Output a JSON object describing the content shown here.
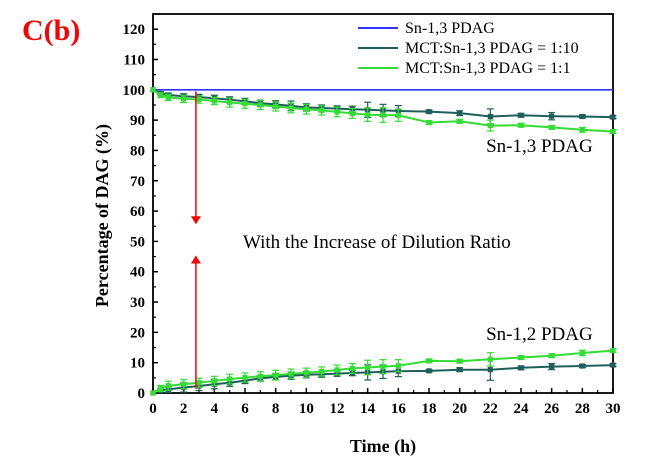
{
  "panel_label": "C(b)",
  "chart_data": {
    "type": "line",
    "xlabel": "Time (h)",
    "ylabel": "Percentage of DAG (%)",
    "xlim": [
      0,
      30
    ],
    "ylim": [
      0,
      125
    ],
    "x_ticks": [
      0,
      2,
      4,
      6,
      8,
      10,
      12,
      14,
      16,
      18,
      20,
      22,
      24,
      26,
      28,
      30
    ],
    "y_ticks": [
      0,
      10,
      20,
      30,
      40,
      50,
      60,
      70,
      80,
      90,
      100,
      110,
      120
    ],
    "grid": false,
    "legend_position": "top-right",
    "colors": {
      "reference": "#3333ff",
      "ratio_1_10": "#1f5f5b",
      "ratio_1_1": "#33dd33",
      "arrow": "#ff0000"
    },
    "series": [
      {
        "name": "Sn-1,3 PDAG",
        "color": "#3333ff",
        "x": [
          0,
          30
        ],
        "values": [
          100,
          100
        ],
        "errors": [
          0,
          0
        ]
      },
      {
        "name": "MCT:Sn-1,3 PDAG = 1:10",
        "group": "Sn-1,3 PDAG",
        "color": "#1f5f5b",
        "x": [
          0,
          0.5,
          1,
          2,
          3,
          4,
          5,
          6,
          7,
          8,
          9,
          10,
          11,
          12,
          13,
          14,
          15,
          16,
          18,
          20,
          22,
          24,
          26,
          28,
          30
        ],
        "values": [
          100,
          98.8,
          98.3,
          97.9,
          97.6,
          97.2,
          96.7,
          96.2,
          95.6,
          95.2,
          94.7,
          94.2,
          94,
          93.8,
          93.6,
          93.4,
          93.2,
          93,
          92.8,
          92.3,
          91.2,
          91.6,
          91.3,
          91.2,
          91
        ],
        "errors": [
          0,
          0.5,
          0.6,
          0.8,
          0.9,
          1.0,
          1.0,
          1.0,
          1.0,
          1.2,
          1.6,
          1.2,
          1.0,
          0.9,
          1.0,
          2.5,
          2.0,
          1.8,
          0.5,
          0.8,
          2.5,
          0.6,
          1.2,
          0.5,
          0.5
        ]
      },
      {
        "name": "MCT:Sn-1,3 PDAG = 1:1",
        "group": "Sn-1,3 PDAG",
        "color": "#33dd33",
        "x": [
          0,
          0.5,
          1,
          2,
          3,
          4,
          5,
          6,
          7,
          8,
          9,
          10,
          11,
          12,
          13,
          14,
          15,
          16,
          18,
          20,
          22,
          24,
          26,
          28,
          30
        ],
        "values": [
          100,
          98.2,
          97.5,
          97,
          96.8,
          96.3,
          95.8,
          95.4,
          95,
          94.5,
          94,
          93.6,
          93.2,
          92.7,
          92.2,
          91.8,
          91.7,
          91.6,
          89.2,
          89.6,
          88.2,
          88.3,
          87.6,
          86.8,
          86.2
        ],
        "errors": [
          0,
          0.8,
          1.0,
          1.2,
          1.2,
          1.2,
          1.5,
          1.5,
          1.5,
          1.5,
          1.6,
          1.6,
          1.5,
          1.6,
          1.6,
          2.2,
          2.4,
          2.0,
          0.6,
          0.6,
          1.8,
          0.6,
          0.6,
          0.8,
          0.6
        ]
      },
      {
        "name": "MCT:Sn-1,3 PDAG = 1:10",
        "group": "Sn-1,2 PDAG",
        "color": "#1f5f5b",
        "x": [
          0,
          0.5,
          1,
          2,
          3,
          4,
          5,
          6,
          7,
          8,
          9,
          10,
          11,
          12,
          13,
          14,
          15,
          16,
          18,
          20,
          22,
          24,
          26,
          28,
          30
        ],
        "values": [
          0,
          0.8,
          1.2,
          1.8,
          2.3,
          2.9,
          3.4,
          4.1,
          4.8,
          5.3,
          5.7,
          6.0,
          6.2,
          6.4,
          6.6,
          6.8,
          7.0,
          7.2,
          7.3,
          7.7,
          7.7,
          8.3,
          8.7,
          8.9,
          9.2
        ],
        "errors": [
          0,
          0.5,
          1.0,
          1.5,
          1.5,
          1.5,
          1.2,
          1.0,
          0.9,
          1.0,
          1.2,
          1.0,
          1.0,
          0.9,
          0.9,
          2.5,
          2.2,
          1.8,
          0.4,
          0.6,
          3.5,
          0.6,
          1.0,
          0.5,
          0.5
        ]
      },
      {
        "name": "MCT:Sn-1,3 PDAG = 1:1",
        "group": "Sn-1,2 PDAG",
        "color": "#33dd33",
        "x": [
          0,
          0.5,
          1,
          2,
          3,
          4,
          5,
          6,
          7,
          8,
          9,
          10,
          11,
          12,
          13,
          14,
          15,
          16,
          18,
          20,
          22,
          24,
          26,
          28,
          30
        ],
        "values": [
          0,
          1.5,
          2.4,
          2.9,
          3.4,
          4.0,
          4.6,
          5.1,
          5.5,
          5.9,
          6.3,
          6.7,
          7.1,
          7.6,
          8.1,
          8.4,
          8.7,
          9.0,
          10.6,
          10.5,
          11.1,
          11.7,
          12.3,
          13.2,
          14.0
        ],
        "errors": [
          0,
          1.0,
          1.5,
          1.5,
          1.5,
          1.5,
          1.6,
          1.5,
          1.5,
          1.6,
          1.6,
          1.5,
          1.5,
          1.6,
          1.6,
          2.4,
          2.3,
          2.0,
          0.5,
          0.6,
          2.2,
          0.6,
          0.6,
          0.9,
          0.6
        ]
      }
    ],
    "annotations": [
      {
        "text": "Sn-1,3 PDAG",
        "x": 25.2,
        "y": 81.5
      },
      {
        "text": "Sn-1,2 PDAG",
        "x": 25.2,
        "y": 19.5
      },
      {
        "text": "With the Increase of Dilution Ratio",
        "x": 14.6,
        "y": 49.8
      }
    ],
    "arrows": [
      {
        "x": 2.8,
        "from_y": 99.5,
        "to_y": 56
      },
      {
        "x": 2.8,
        "from_y": 1.5,
        "to_y": 45
      }
    ]
  }
}
